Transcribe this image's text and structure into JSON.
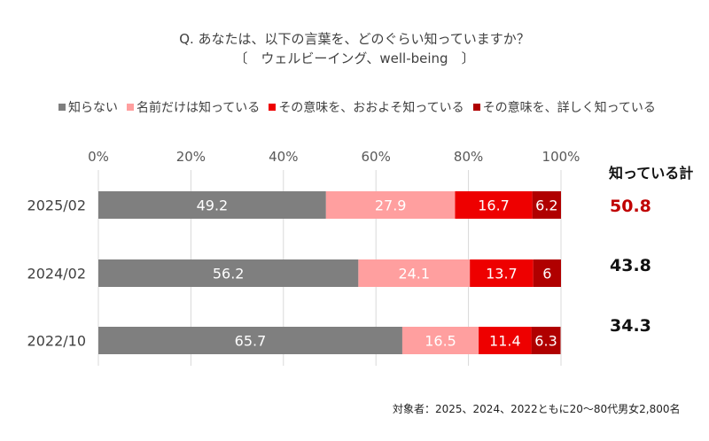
{
  "chart_data": {
    "type": "bar",
    "orientation": "horizontal",
    "stacked": true,
    "title": "Q. あなたは、以下の言葉を、どのぐらい知っていますか？",
    "subtitle": "〔　ウェルビーイング、well-being　〕",
    "categories": [
      "2025/02",
      "2024/02",
      "2022/10"
    ],
    "series": [
      {
        "name": "知らない",
        "color": "#7f7f7f",
        "values": [
          49.2,
          56.2,
          65.7
        ]
      },
      {
        "name": "名前だけは知っている",
        "color": "#ff9f9f",
        "values": [
          27.9,
          24.1,
          16.5
        ]
      },
      {
        "name": "その意味を、おおよそ知っている",
        "color": "#ee0000",
        "values": [
          16.7,
          13.7,
          11.4
        ]
      },
      {
        "name": "その意味を、詳しく知っている",
        "color": "#b00000",
        "values": [
          6.2,
          6,
          6.3
        ]
      }
    ],
    "data_labels": [
      [
        "49.2",
        "27.9",
        "16.7",
        "6.2"
      ],
      [
        "56.2",
        "24.1",
        "13.7",
        "6"
      ],
      [
        "65.7",
        "16.5",
        "11.4",
        "6.3"
      ]
    ],
    "xlim": [
      0,
      100
    ],
    "xticks": [
      0,
      20,
      40,
      60,
      80,
      100
    ],
    "xtick_labels": [
      "0%",
      "20%",
      "40%",
      "60%",
      "80%",
      "100%"
    ],
    "grid": true,
    "legend_position": "top",
    "totals": {
      "header": "知っている計",
      "values": [
        "50.8",
        "43.8",
        "34.3"
      ],
      "highlight_color": "#c00000"
    },
    "footnote": "対象者：2025、2024、2022ともに20～80代男女2,800名"
  }
}
